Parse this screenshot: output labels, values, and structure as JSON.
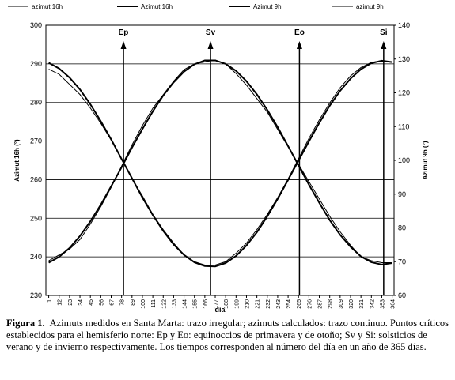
{
  "chart_data": {
    "type": "line",
    "x": [
      1,
      12,
      23,
      34,
      45,
      56,
      67,
      78,
      89,
      100,
      111,
      122,
      133,
      144,
      155,
      166,
      177,
      188,
      199,
      210,
      221,
      232,
      243,
      254,
      265,
      276,
      287,
      298,
      309,
      320,
      331,
      342,
      353,
      364
    ],
    "xlim": [
      -2,
      366
    ],
    "xticks": [
      1,
      12,
      23,
      34,
      45,
      56,
      67,
      78,
      89,
      100,
      111,
      122,
      133,
      144,
      155,
      166,
      177,
      188,
      199,
      210,
      221,
      232,
      243,
      254,
      265,
      276,
      287,
      298,
      309,
      320,
      331,
      342,
      353,
      364
    ],
    "ylim": [
      230,
      300
    ],
    "yticks": [
      230,
      240,
      250,
      260,
      270,
      280,
      290,
      300
    ],
    "y2lim": [
      60,
      140
    ],
    "y2ticks": [
      60,
      70,
      80,
      90,
      100,
      110,
      120,
      130,
      140
    ],
    "xlabel": "día",
    "ylabel": "Azimut 16h (°)",
    "y2label": "Azimut 9h (°)",
    "grid": true,
    "series": [
      {
        "name": "azimut 16h",
        "color": "#000000",
        "width": 1,
        "axis": "y",
        "values": [
          239.0,
          240.5,
          242.0,
          244.5,
          248.5,
          253.0,
          258.0,
          263.5,
          269.0,
          274.0,
          278.5,
          282.0,
          285.5,
          288.5,
          290.0,
          290.5,
          291.0,
          290.0,
          287.5,
          284.5,
          281.0,
          277.5,
          273.0,
          268.5,
          264.0,
          259.5,
          255.0,
          250.5,
          246.5,
          243.0,
          240.0,
          239.0,
          238.5,
          238.5
        ]
      },
      {
        "name": "Azimut 16h",
        "color": "#000000",
        "width": 2,
        "axis": "y",
        "values": [
          238.5,
          240.0,
          242.3,
          245.4,
          249.2,
          253.5,
          258.3,
          263.2,
          268.3,
          273.1,
          277.7,
          281.8,
          285.2,
          288.0,
          289.9,
          290.9,
          290.9,
          290.0,
          288.2,
          285.5,
          282.1,
          278.1,
          273.6,
          268.7,
          263.7,
          258.7,
          254.0,
          249.5,
          245.7,
          242.6,
          240.1,
          238.6,
          238.0,
          238.4
        ]
      },
      {
        "name": "Azimut 9h",
        "color": "#000000",
        "width": 2,
        "axis": "y2",
        "values": [
          128.9,
          127.2,
          124.5,
          121.0,
          116.6,
          111.6,
          106.2,
          100.4,
          94.7,
          89.0,
          83.8,
          79.1,
          75.1,
          72.0,
          69.8,
          68.7,
          68.6,
          69.6,
          71.7,
          74.8,
          78.7,
          83.4,
          88.6,
          94.2,
          99.9,
          105.6,
          111.1,
          116.2,
          120.6,
          124.2,
          127.0,
          128.8,
          129.5,
          129.1
        ]
      },
      {
        "name": "azimut 9h",
        "color": "#000000",
        "width": 1,
        "axis": "y2",
        "values": [
          127.0,
          125.5,
          122.5,
          119.5,
          115.5,
          111.0,
          106.0,
          100.5,
          94.5,
          89.5,
          84.0,
          79.5,
          75.5,
          72.0,
          70.0,
          69.0,
          69.0,
          70.0,
          72.5,
          75.5,
          79.5,
          84.0,
          89.0,
          94.5,
          100.5,
          106.5,
          112.0,
          117.0,
          121.5,
          125.0,
          127.5,
          129.0,
          129.5,
          129.0
        ]
      }
    ],
    "annotations": [
      {
        "label": "Ep",
        "x": 80
      },
      {
        "label": "Sv",
        "x": 172
      },
      {
        "label": "Eo",
        "x": 266
      },
      {
        "label": "Si",
        "x": 355
      }
    ]
  },
  "caption": {
    "label": "Figura 1.",
    "text": "Azimuts medidos en Santa Marta: trazo irregular; azimuts calculados: trazo continuo. Puntos críticos establecidos para el hemisferio norte: Ep y Eo: equinoccios de primavera y de otoño; Sv y Si: solsticios de verano y de invierno respectivamente. Los tiempos corresponden al número del día en un año de 365 días."
  }
}
